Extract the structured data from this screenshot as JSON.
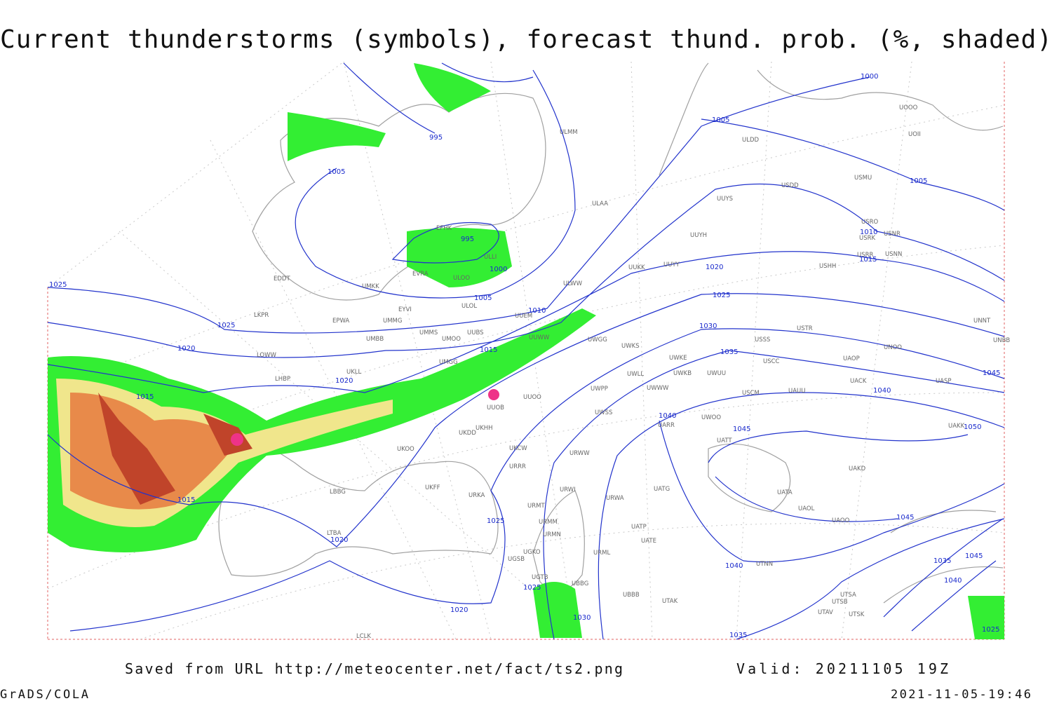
{
  "header": {
    "title": "Current thunderstorms (symbols), forecast thund. prob. (%, shaded)"
  },
  "map_labels": {
    "isobars": [
      "1000",
      "1005",
      "995",
      "1005",
      "1005",
      "1010",
      "995",
      "1015",
      "1000",
      "1020",
      "1025",
      "1005",
      "1025",
      "1010",
      "1025",
      "1030",
      "1020",
      "1015",
      "1035",
      "1020",
      "1045",
      "1040",
      "1015",
      "1040",
      "1045",
      "1050",
      "1015",
      "1045",
      "1025",
      "1020",
      "1040",
      "1035",
      "1045",
      "1025",
      "1020",
      "1030",
      "1035",
      "1040",
      "1025"
    ],
    "stations": [
      "ULMM",
      "ULDD",
      "UOOO",
      "UOII",
      "USMU",
      "USDD",
      "UUYS",
      "ULAA",
      "EFHK",
      "USRO",
      "USRK",
      "USNR",
      "UUYH",
      "ULLI",
      "USRR",
      "USNN",
      "UUKK",
      "UUYY",
      "USHH",
      "ULOO",
      "EVRA",
      "EDDT",
      "UMKK",
      "ULWW",
      "ULOL",
      "EYVI",
      "UUEM",
      "LKPR",
      "EPWA",
      "UMMG",
      "UMMS",
      "UUBS",
      "UMOO",
      "USTR",
      "UNNT",
      "UMBB",
      "UUWW",
      "UWGG",
      "UWKS",
      "USSS",
      "UNOO",
      "UNBB",
      "LOWW",
      "UWKE",
      "USCC",
      "UAOP",
      "UMGG",
      "LHBP",
      "UKLL",
      "UWLL",
      "UWKB",
      "UWUU",
      "UACK",
      "UASP",
      "UWPP",
      "UWWW",
      "USCM",
      "UAUU",
      "UUOO",
      "UUOB",
      "UWSS",
      "UARR",
      "UWOO",
      "UAKK",
      "UKHH",
      "UKDD",
      "URWW",
      "URRR",
      "UKOO",
      "UKCW",
      "UATT",
      "UAKD",
      "UKFF",
      "URKA",
      "LBBG",
      "UATG",
      "URWI",
      "URWA",
      "UATA",
      "URMT",
      "UAOL",
      "UAOO",
      "URMM",
      "UATP",
      "UATE",
      "URMN",
      "LTBA",
      "UGKO",
      "URML",
      "UTNN",
      "UGSB",
      "UGTB",
      "UBBG",
      "UBBB",
      "UTAK",
      "UTSA",
      "UTSB",
      "UTAV",
      "UTSK",
      "LCLK"
    ]
  },
  "footer": {
    "source": "Saved from URL http://meteocenter.net/fact/ts2.png",
    "valid": "Valid: 20211105 19Z",
    "software": "GrADS/COLA",
    "timestamp": "2021-11-05-19:46"
  }
}
